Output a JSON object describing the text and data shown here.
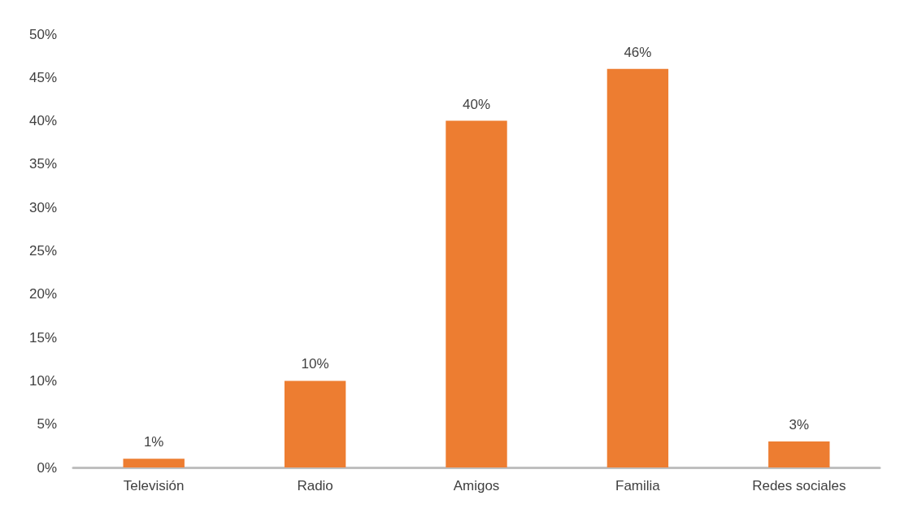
{
  "chart_data": {
    "type": "bar",
    "categories": [
      "Televisión",
      "Radio",
      "Amigos",
      "Familia",
      "Redes sociales"
    ],
    "values": [
      1,
      10,
      40,
      46,
      3
    ],
    "value_labels": [
      "1%",
      "10%",
      "40%",
      "46%",
      "3%"
    ],
    "color": "#ed7d31",
    "ylim": [
      0,
      50
    ],
    "yticks": [
      {
        "value": 0,
        "label": "0%"
      },
      {
        "value": 5,
        "label": "5%"
      },
      {
        "value": 10,
        "label": "10%"
      },
      {
        "value": 15,
        "label": "15%"
      },
      {
        "value": 20,
        "label": "20%"
      },
      {
        "value": 25,
        "label": "25%"
      },
      {
        "value": 30,
        "label": "30%"
      },
      {
        "value": 35,
        "label": "35%"
      },
      {
        "value": 40,
        "label": "40%"
      },
      {
        "value": 45,
        "label": "45%"
      },
      {
        "value": 50,
        "label": "50%"
      }
    ],
    "grid": false
  }
}
